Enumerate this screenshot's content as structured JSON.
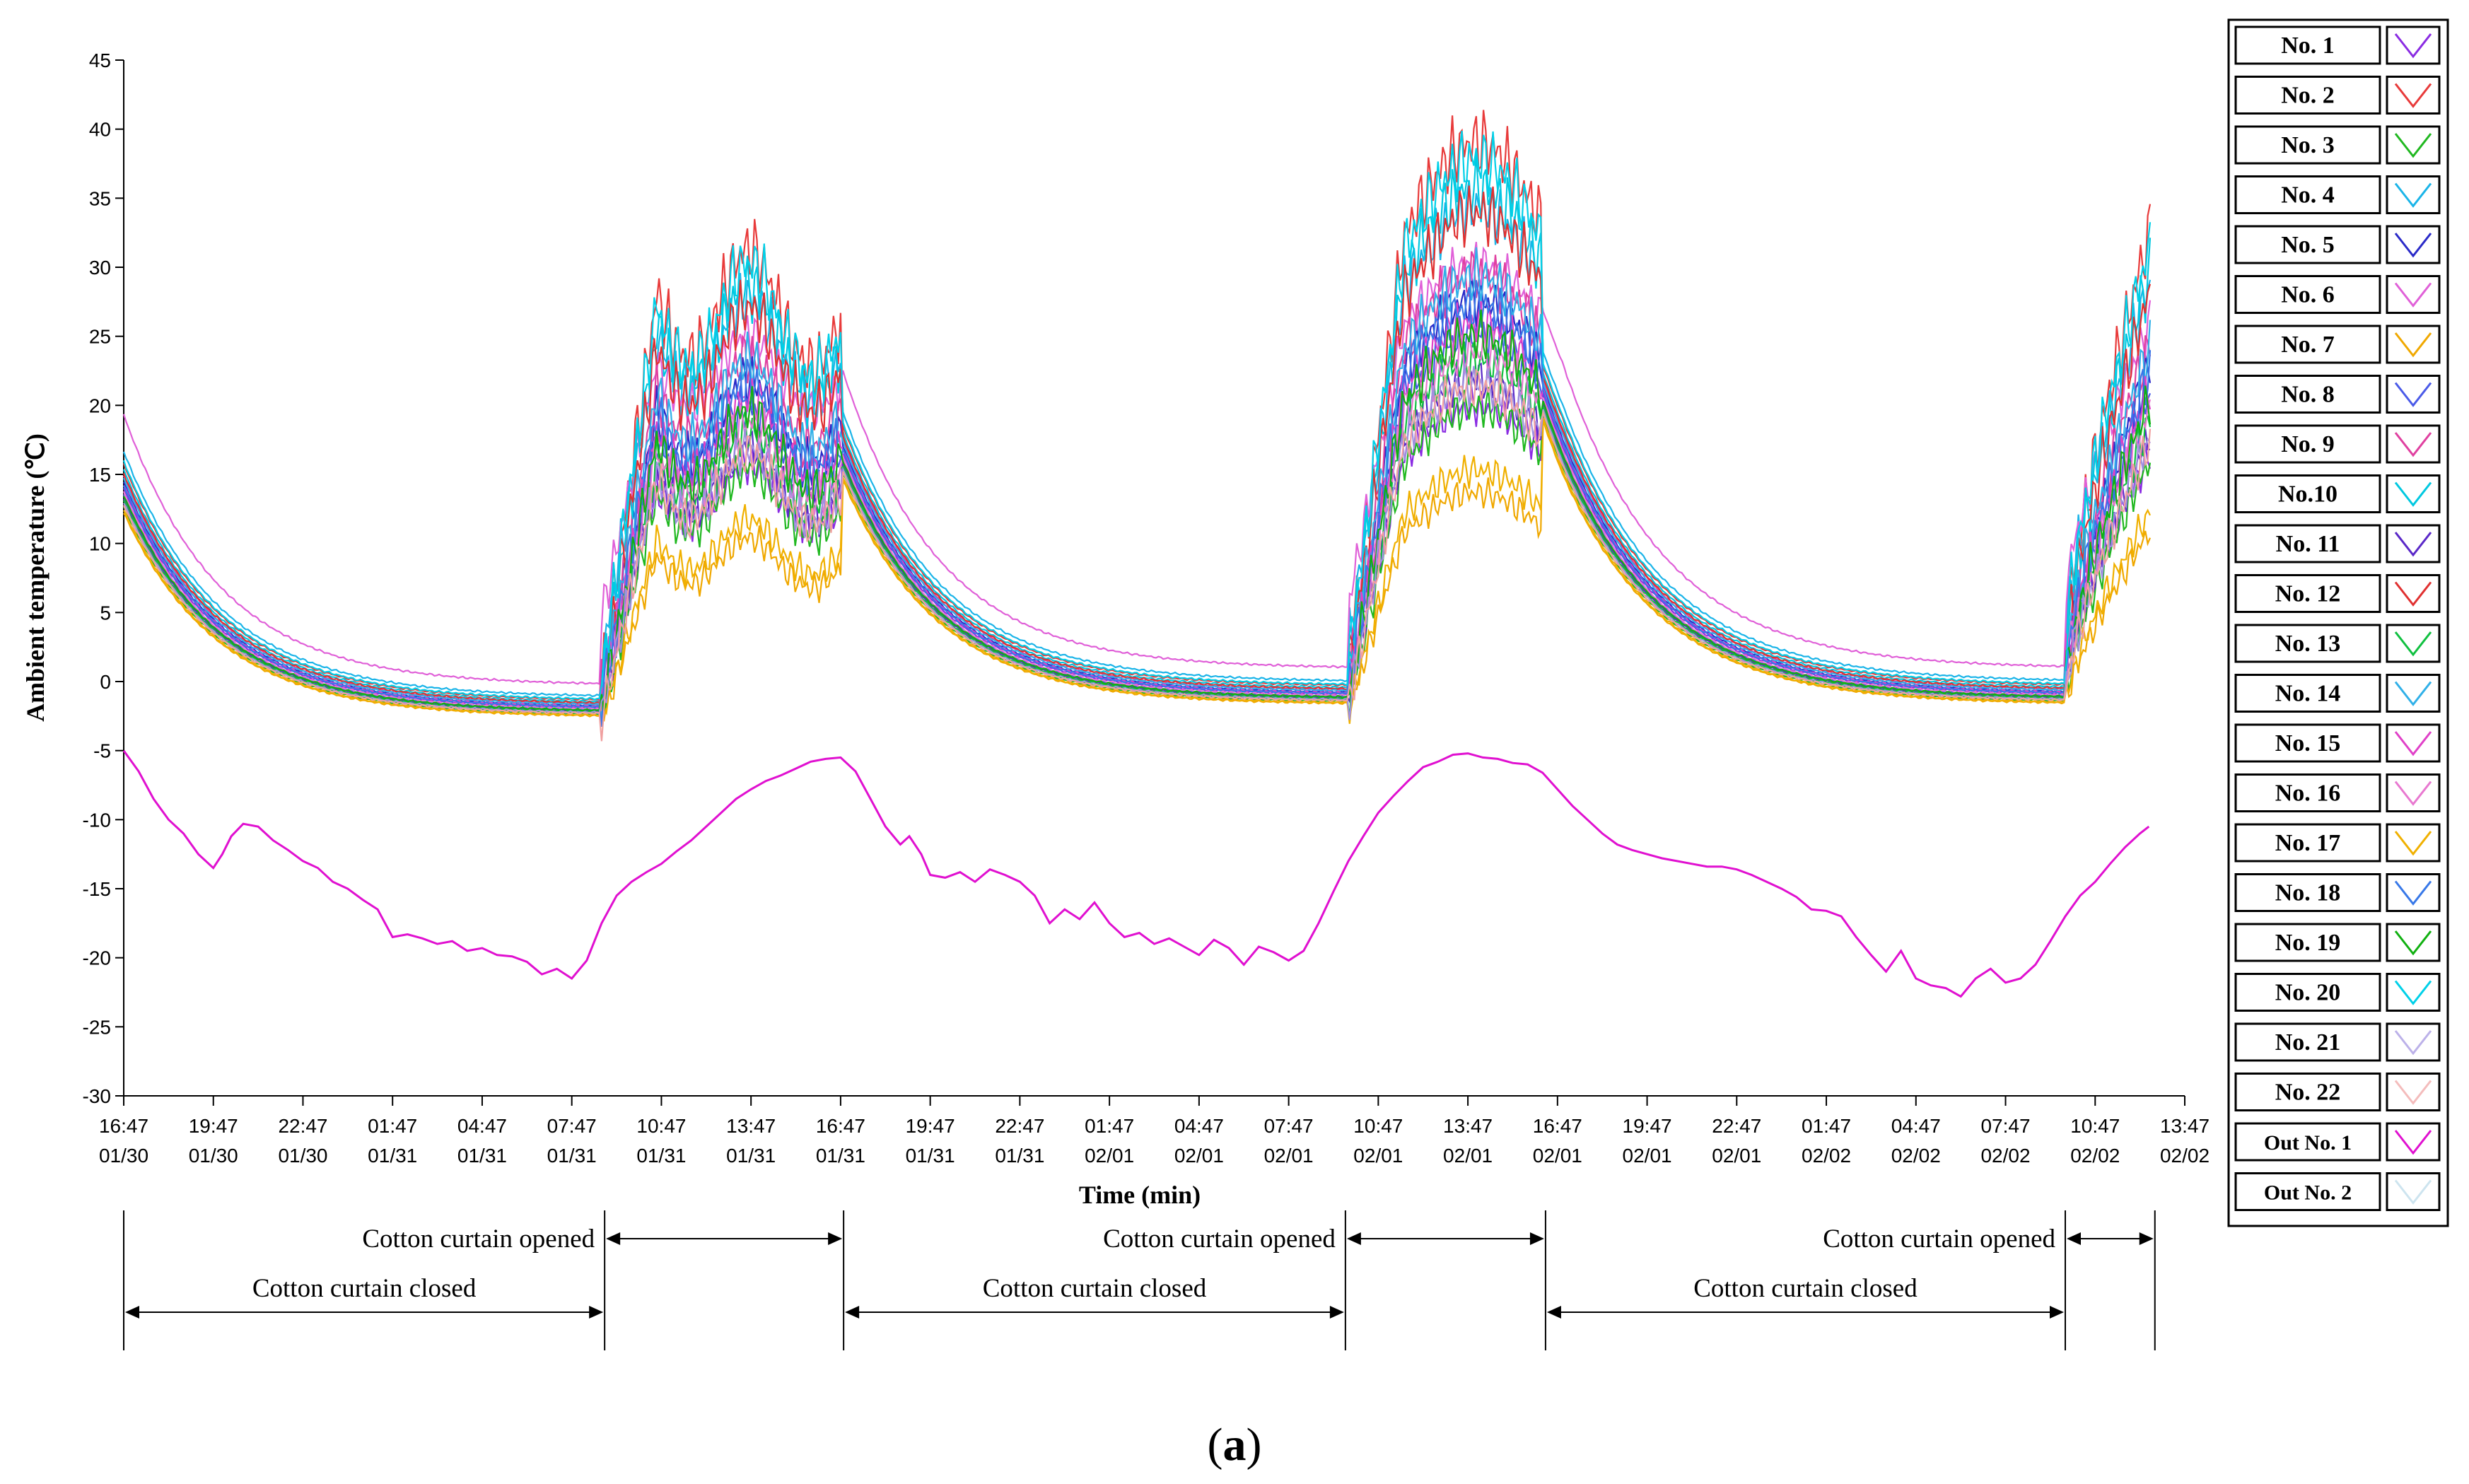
{
  "chart_data": {
    "type": "line",
    "title": "",
    "xlabel": "Time (min)",
    "ylabel": "Ambient temperature (℃)",
    "ylim": [
      -30,
      45
    ],
    "yticks": [
      45,
      40,
      35,
      30,
      25,
      20,
      15,
      10,
      5,
      0,
      -5,
      -10,
      -15,
      -20,
      -25,
      -30
    ],
    "xlim": [
      0,
      69
    ],
    "xticks": [
      {
        "t": 0,
        "time": "16:47",
        "date": "01/30"
      },
      {
        "t": 3,
        "time": "19:47",
        "date": "01/30"
      },
      {
        "t": 6,
        "time": "22:47",
        "date": "01/30"
      },
      {
        "t": 9,
        "time": "01:47",
        "date": "01/31"
      },
      {
        "t": 12,
        "time": "04:47",
        "date": "01/31"
      },
      {
        "t": 15,
        "time": "07:47",
        "date": "01/31"
      },
      {
        "t": 18,
        "time": "10:47",
        "date": "01/31"
      },
      {
        "t": 21,
        "time": "13:47",
        "date": "01/31"
      },
      {
        "t": 24,
        "time": "16:47",
        "date": "01/31"
      },
      {
        "t": 27,
        "time": "19:47",
        "date": "01/31"
      },
      {
        "t": 30,
        "time": "22:47",
        "date": "01/31"
      },
      {
        "t": 33,
        "time": "01:47",
        "date": "02/01"
      },
      {
        "t": 36,
        "time": "04:47",
        "date": "02/01"
      },
      {
        "t": 39,
        "time": "07:47",
        "date": "02/01"
      },
      {
        "t": 42,
        "time": "10:47",
        "date": "02/01"
      },
      {
        "t": 45,
        "time": "13:47",
        "date": "02/01"
      },
      {
        "t": 48,
        "time": "16:47",
        "date": "02/01"
      },
      {
        "t": 51,
        "time": "19:47",
        "date": "02/01"
      },
      {
        "t": 54,
        "time": "22:47",
        "date": "02/01"
      },
      {
        "t": 57,
        "time": "01:47",
        "date": "02/02"
      },
      {
        "t": 60,
        "time": "04:47",
        "date": "02/02"
      },
      {
        "t": 63,
        "time": "07:47",
        "date": "02/02"
      },
      {
        "t": 66,
        "time": "10:47",
        "date": "02/02"
      },
      {
        "t": 69,
        "time": "13:47",
        "date": "02/02"
      }
    ],
    "series": [
      {
        "name": "No. 1",
        "color": "#8a2be2",
        "offset": 0.0,
        "amp": 0.7
      },
      {
        "name": "No. 2",
        "color": "#e83a3a",
        "offset": 2.0,
        "amp": 1.3
      },
      {
        "name": "No. 3",
        "color": "#20b820",
        "offset": -1.5,
        "amp": 0.75
      },
      {
        "name": "No. 4",
        "color": "#1ab4e8",
        "offset": 3.0,
        "amp": 1.1
      },
      {
        "name": "No. 5",
        "color": "#2a2ac8",
        "offset": 0.5,
        "amp": 0.95
      },
      {
        "name": "No. 6",
        "color": "#e060d8",
        "offset": 6.0,
        "amp": 0.85
      },
      {
        "name": "No. 7",
        "color": "#f0a800",
        "offset": -2.0,
        "amp": 0.55
      },
      {
        "name": "No. 8",
        "color": "#4a5ae8",
        "offset": -0.5,
        "amp": 0.9
      },
      {
        "name": "No. 9",
        "color": "#e040a0",
        "offset": 1.0,
        "amp": 1.0
      },
      {
        "name": "No.10",
        "color": "#00c8e0",
        "offset": 1.5,
        "amp": 1.2
      },
      {
        "name": "No. 11",
        "color": "#5a28c8",
        "offset": -0.8,
        "amp": 0.8
      },
      {
        "name": "No. 12",
        "color": "#e03030",
        "offset": 1.2,
        "amp": 1.15
      },
      {
        "name": "No. 13",
        "color": "#10c040",
        "offset": -1.0,
        "amp": 0.85
      },
      {
        "name": "No. 14",
        "color": "#30b0e8",
        "offset": 0.8,
        "amp": 1.0
      },
      {
        "name": "No. 15",
        "color": "#e040c8",
        "offset": 0.3,
        "amp": 0.9
      },
      {
        "name": "No. 16",
        "color": "#e878d0",
        "offset": -0.3,
        "amp": 0.85
      },
      {
        "name": "No. 17",
        "color": "#f0b000",
        "offset": -1.8,
        "amp": 0.6
      },
      {
        "name": "No. 18",
        "color": "#3878e8",
        "offset": 0.2,
        "amp": 0.95
      },
      {
        "name": "No. 19",
        "color": "#10b010",
        "offset": -0.6,
        "amp": 0.9
      },
      {
        "name": "No. 20",
        "color": "#00d0e8",
        "offset": 2.2,
        "amp": 1.25
      },
      {
        "name": "No. 21",
        "color": "#a090e0",
        "offset": -1.2,
        "amp": 0.8
      },
      {
        "name": "No. 22",
        "color": "#f0a0a0",
        "offset": -1.4,
        "amp": 0.8
      },
      {
        "name": "Out No. 1",
        "color": "#e010d0",
        "outdoor": true,
        "values": [
          [
            0,
            -5
          ],
          [
            0.5,
            -6.5
          ],
          [
            1,
            -8.5
          ],
          [
            1.5,
            -10
          ],
          [
            2,
            -11
          ],
          [
            2.5,
            -12.5
          ],
          [
            3,
            -13.5
          ],
          [
            3.3,
            -12.5
          ],
          [
            3.6,
            -11.2
          ],
          [
            4,
            -10.3
          ],
          [
            4.5,
            -10.5
          ],
          [
            5,
            -11.5
          ],
          [
            5.5,
            -12.2
          ],
          [
            6,
            -13
          ],
          [
            6.5,
            -13.5
          ],
          [
            7,
            -14.5
          ],
          [
            7.5,
            -15
          ],
          [
            8,
            -15.8
          ],
          [
            8.5,
            -16.5
          ],
          [
            9,
            -18.5
          ],
          [
            9.5,
            -18.3
          ],
          [
            10,
            -18.6
          ],
          [
            10.5,
            -19
          ],
          [
            11,
            -18.8
          ],
          [
            11.5,
            -19.5
          ],
          [
            12,
            -19.3
          ],
          [
            12.5,
            -19.8
          ],
          [
            13,
            -19.9
          ],
          [
            13.5,
            -20.3
          ],
          [
            14,
            -21.2
          ],
          [
            14.5,
            -20.8
          ],
          [
            15,
            -21.5
          ],
          [
            15.5,
            -20.2
          ],
          [
            16,
            -17.5
          ],
          [
            16.5,
            -15.5
          ],
          [
            17,
            -14.5
          ],
          [
            17.5,
            -13.8
          ],
          [
            18,
            -13.2
          ],
          [
            18.5,
            -12.3
          ],
          [
            19,
            -11.5
          ],
          [
            19.5,
            -10.5
          ],
          [
            20,
            -9.5
          ],
          [
            20.5,
            -8.5
          ],
          [
            21,
            -7.8
          ],
          [
            21.5,
            -7.2
          ],
          [
            22,
            -6.8
          ],
          [
            22.5,
            -6.3
          ],
          [
            23,
            -5.8
          ],
          [
            23.5,
            -5.6
          ],
          [
            24,
            -5.5
          ],
          [
            24.5,
            -6.5
          ],
          [
            25,
            -8.5
          ],
          [
            25.5,
            -10.5
          ],
          [
            26,
            -11.8
          ],
          [
            26.3,
            -11.2
          ],
          [
            26.7,
            -12.5
          ],
          [
            27,
            -14
          ],
          [
            27.5,
            -14.2
          ],
          [
            28,
            -13.8
          ],
          [
            28.5,
            -14.5
          ],
          [
            29,
            -13.6
          ],
          [
            29.5,
            -14
          ],
          [
            30,
            -14.5
          ],
          [
            30.5,
            -15.5
          ],
          [
            31,
            -17.5
          ],
          [
            31.5,
            -16.5
          ],
          [
            32,
            -17.2
          ],
          [
            32.5,
            -16
          ],
          [
            33,
            -17.5
          ],
          [
            33.5,
            -18.5
          ],
          [
            34,
            -18.2
          ],
          [
            34.5,
            -19
          ],
          [
            35,
            -18.6
          ],
          [
            35.5,
            -19.2
          ],
          [
            36,
            -19.8
          ],
          [
            36.5,
            -18.7
          ],
          [
            37,
            -19.3
          ],
          [
            37.5,
            -20.5
          ],
          [
            38,
            -19.2
          ],
          [
            38.5,
            -19.6
          ],
          [
            39,
            -20.2
          ],
          [
            39.5,
            -19.5
          ],
          [
            40,
            -17.5
          ],
          [
            40.5,
            -15.2
          ],
          [
            41,
            -13
          ],
          [
            41.5,
            -11.2
          ],
          [
            42,
            -9.5
          ],
          [
            42.5,
            -8.3
          ],
          [
            43,
            -7.2
          ],
          [
            43.5,
            -6.2
          ],
          [
            44,
            -5.8
          ],
          [
            44.5,
            -5.3
          ],
          [
            45,
            -5.2
          ],
          [
            45.5,
            -5.5
          ],
          [
            46,
            -5.6
          ],
          [
            46.5,
            -5.9
          ],
          [
            47,
            -6
          ],
          [
            47.5,
            -6.6
          ],
          [
            48,
            -7.8
          ],
          [
            48.5,
            -9
          ],
          [
            49,
            -10
          ],
          [
            49.5,
            -11
          ],
          [
            50,
            -11.8
          ],
          [
            50.5,
            -12.2
          ],
          [
            51,
            -12.5
          ],
          [
            51.5,
            -12.8
          ],
          [
            52,
            -13
          ],
          [
            52.5,
            -13.2
          ],
          [
            53,
            -13.4
          ],
          [
            53.5,
            -13.4
          ],
          [
            54,
            -13.6
          ],
          [
            54.5,
            -14
          ],
          [
            55,
            -14.5
          ],
          [
            55.5,
            -15
          ],
          [
            56,
            -15.6
          ],
          [
            56.5,
            -16.5
          ],
          [
            57,
            -16.6
          ],
          [
            57.5,
            -17
          ],
          [
            58,
            -18.5
          ],
          [
            58.5,
            -19.8
          ],
          [
            59,
            -21
          ],
          [
            59.5,
            -19.5
          ],
          [
            60,
            -21.5
          ],
          [
            60.5,
            -22
          ],
          [
            61,
            -22.2
          ],
          [
            61.5,
            -22.8
          ],
          [
            62,
            -21.5
          ],
          [
            62.5,
            -20.8
          ],
          [
            63,
            -21.8
          ],
          [
            63.5,
            -21.5
          ],
          [
            64,
            -20.5
          ],
          [
            64.5,
            -18.8
          ],
          [
            65,
            -17
          ],
          [
            65.5,
            -15.5
          ],
          [
            66,
            -14.5
          ],
          [
            66.5,
            -13.2
          ],
          [
            67,
            -12
          ],
          [
            67.5,
            -11
          ],
          [
            67.8,
            -10.5
          ]
        ]
      },
      {
        "name": "Out No. 2",
        "color": "#b8d8e8",
        "outdoor": true,
        "values": []
      }
    ],
    "annotations": [
      {
        "label": "Cotton curtain opened",
        "from": 16.1,
        "to": 24.1,
        "row": "upper"
      },
      {
        "label": "Cotton curtain closed",
        "from": 0,
        "to": 16.1,
        "row": "lower"
      },
      {
        "label": "Cotton curtain opened",
        "from": 40.9,
        "to": 47.6,
        "row": "upper"
      },
      {
        "label": "Cotton curtain closed",
        "from": 24.1,
        "to": 40.9,
        "row": "lower"
      },
      {
        "label": "Cotton curtain opened",
        "from": 65.0,
        "to": 68.0,
        "row": "upper"
      },
      {
        "label": "Cotton curtain closed",
        "from": 47.6,
        "to": 65.0,
        "row": "lower"
      }
    ],
    "legend_position": "right"
  },
  "subfigure_label": {
    "open": "(",
    "letter": "a",
    "close": ")"
  }
}
